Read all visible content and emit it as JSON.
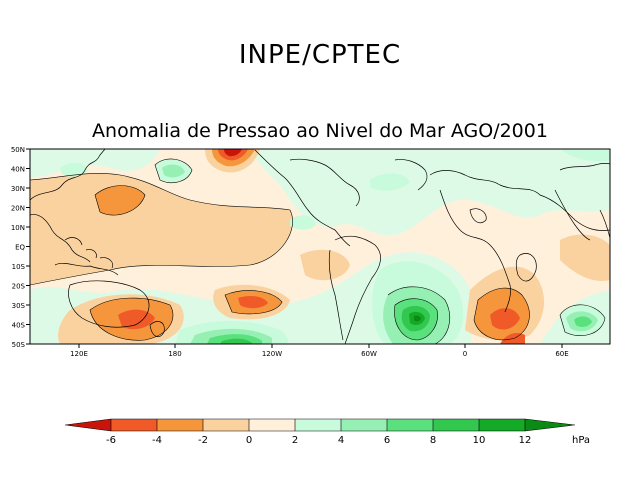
{
  "header": {
    "title": "INPE/CPTEC"
  },
  "map": {
    "title": "Anomalia de Pressao ao Nivel do Mar AGO/2001",
    "lat_labels": [
      "50N",
      "40N",
      "30N",
      "20N",
      "10N",
      "EQ",
      "10S",
      "20S",
      "30S",
      "40S",
      "50S"
    ],
    "lon_labels": [
      "120E",
      "180",
      "120W",
      "60W",
      "0",
      "60E"
    ]
  },
  "colorbar": {
    "labels": [
      "-6",
      "-4",
      "-2",
      "0",
      "2",
      "4",
      "6",
      "8",
      "10",
      "12"
    ],
    "unit": "hPa",
    "colors": [
      "#c8140a",
      "#f05a28",
      "#f5963c",
      "#fad2a0",
      "#fff0dc",
      "#c8fadc",
      "#96f0b4",
      "#5ae17d",
      "#32c850",
      "#14aa28",
      "#0a8c14"
    ]
  }
}
